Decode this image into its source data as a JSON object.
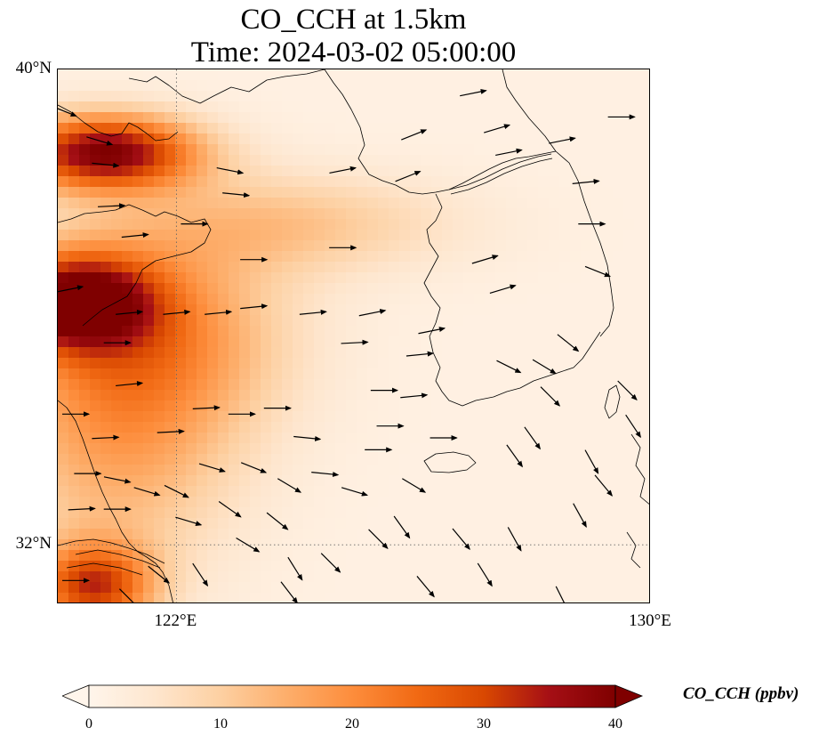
{
  "title_line1": "CO_CCH at 1.5km",
  "title_line2": "Time: 2024-03-02 05:00:00",
  "map": {
    "lon_range": [
      120.0,
      130.0
    ],
    "lat_range": [
      31.0,
      40.0
    ],
    "lat_ticks": [
      {
        "value": 40,
        "label": "40°N"
      },
      {
        "value": 32,
        "label": "32°N"
      }
    ],
    "lon_ticks": [
      {
        "value": 122,
        "label": "122°E"
      },
      {
        "value": 130,
        "label": "130°E"
      }
    ],
    "gridlines": {
      "lons": [
        122
      ],
      "lats": [
        32
      ],
      "style": "dotted"
    },
    "ocean_color": "#fff4e6",
    "coastline_color": "#000000",
    "wind_vectors": "black arrows"
  },
  "colorbar": {
    "label": "CO_CCH (ppbv)",
    "min": 0,
    "max": 40,
    "ticks": [
      "0",
      "10",
      "20",
      "30",
      "40"
    ],
    "colormap": [
      "#fff5eb",
      "#fee6ce",
      "#fdd0a2",
      "#fdae6b",
      "#fd8d3c",
      "#f16913",
      "#d94801",
      "#a50f15",
      "#7f0000"
    ],
    "extend": "both"
  },
  "chart_data": {
    "type": "heatmap",
    "title": "CO_CCH at 1.5km\nTime: 2024-03-02 05:00:00",
    "variable": "CO_CCH",
    "units": "ppbv",
    "value_range": [
      0,
      40
    ],
    "plumes": [
      {
        "lon": 120.8,
        "lat": 38.6,
        "peak": 38,
        "sigma_lon": 1.1,
        "sigma_lat": 0.45
      },
      {
        "lon": 120.3,
        "lat": 36.1,
        "peak": 36,
        "sigma_lon": 0.9,
        "sigma_lat": 0.55
      },
      {
        "lon": 121.5,
        "lat": 35.5,
        "peak": 18,
        "sigma_lon": 1.6,
        "sigma_lat": 1.2
      },
      {
        "lon": 123.8,
        "lat": 37.4,
        "peak": 10,
        "sigma_lon": 2.0,
        "sigma_lat": 0.6
      },
      {
        "lon": 120.6,
        "lat": 31.3,
        "peak": 28,
        "sigma_lon": 0.7,
        "sigma_lat": 0.5
      },
      {
        "lon": 121.0,
        "lat": 33.5,
        "peak": 12,
        "sigma_lon": 1.4,
        "sigma_lat": 1.5
      }
    ],
    "background_ppbv": 1.5,
    "wind_vectors": [
      {
        "lon": 120.1,
        "lat": 39.3,
        "u": 1.0,
        "v": -0.4
      },
      {
        "lon": 120.7,
        "lat": 38.8,
        "u": 1.0,
        "v": -0.3
      },
      {
        "lon": 120.8,
        "lat": 38.4,
        "u": 1.0,
        "v": -0.1
      },
      {
        "lon": 120.9,
        "lat": 37.7,
        "u": 1.0,
        "v": 0.05
      },
      {
        "lon": 121.3,
        "lat": 37.2,
        "u": 1.0,
        "v": 0.1
      },
      {
        "lon": 120.2,
        "lat": 36.3,
        "u": 1.0,
        "v": 0.2
      },
      {
        "lon": 121.0,
        "lat": 35.4,
        "u": 1.0,
        "v": 0.0
      },
      {
        "lon": 121.2,
        "lat": 34.7,
        "u": 1.0,
        "v": 0.1
      },
      {
        "lon": 120.3,
        "lat": 34.2,
        "u": 1.0,
        "v": 0.0
      },
      {
        "lon": 120.8,
        "lat": 33.8,
        "u": 1.0,
        "v": 0.05
      },
      {
        "lon": 121.9,
        "lat": 33.9,
        "u": 1.0,
        "v": 0.05
      },
      {
        "lon": 122.5,
        "lat": 34.3,
        "u": 1.0,
        "v": 0.05
      },
      {
        "lon": 123.1,
        "lat": 34.2,
        "u": 1.0,
        "v": 0.0
      },
      {
        "lon": 123.7,
        "lat": 34.3,
        "u": 1.0,
        "v": 0.0
      },
      {
        "lon": 121.2,
        "lat": 35.9,
        "u": 1.0,
        "v": 0.1
      },
      {
        "lon": 122.0,
        "lat": 35.9,
        "u": 1.0,
        "v": 0.1
      },
      {
        "lon": 122.7,
        "lat": 35.9,
        "u": 1.0,
        "v": 0.1
      },
      {
        "lon": 123.3,
        "lat": 36.0,
        "u": 1.0,
        "v": 0.1
      },
      {
        "lon": 124.3,
        "lat": 35.9,
        "u": 1.0,
        "v": 0.1
      },
      {
        "lon": 123.3,
        "lat": 36.8,
        "u": 1.0,
        "v": 0.0
      },
      {
        "lon": 124.8,
        "lat": 37.0,
        "u": 1.0,
        "v": 0.0
      },
      {
        "lon": 122.3,
        "lat": 37.4,
        "u": 1.0,
        "v": 0.0
      },
      {
        "lon": 123.0,
        "lat": 37.9,
        "u": 1.0,
        "v": -0.1
      },
      {
        "lon": 122.9,
        "lat": 38.3,
        "u": 1.0,
        "v": -0.2
      },
      {
        "lon": 124.8,
        "lat": 38.3,
        "u": 1.0,
        "v": 0.2
      },
      {
        "lon": 125.9,
        "lat": 38.2,
        "u": 1.0,
        "v": 0.4
      },
      {
        "lon": 127.6,
        "lat": 38.6,
        "u": 1.0,
        "v": 0.2
      },
      {
        "lon": 127.4,
        "lat": 39.0,
        "u": 1.0,
        "v": 0.3
      },
      {
        "lon": 128.5,
        "lat": 38.8,
        "u": 1.0,
        "v": 0.2
      },
      {
        "lon": 129.5,
        "lat": 39.2,
        "u": 1.0,
        "v": 0.0
      },
      {
        "lon": 127.0,
        "lat": 39.6,
        "u": 1.0,
        "v": 0.2
      },
      {
        "lon": 126.0,
        "lat": 38.9,
        "u": 1.0,
        "v": 0.4
      },
      {
        "lon": 128.9,
        "lat": 38.1,
        "u": 1.0,
        "v": 0.1
      },
      {
        "lon": 129.0,
        "lat": 37.4,
        "u": 1.0,
        "v": 0.0
      },
      {
        "lon": 129.1,
        "lat": 36.6,
        "u": 1.0,
        "v": -0.4
      },
      {
        "lon": 128.2,
        "lat": 35.0,
        "u": 1.0,
        "v": -0.6
      },
      {
        "lon": 127.6,
        "lat": 35.0,
        "u": 1.0,
        "v": -0.5
      },
      {
        "lon": 126.3,
        "lat": 35.6,
        "u": 1.0,
        "v": 0.2
      },
      {
        "lon": 126.0,
        "lat": 34.5,
        "u": 1.0,
        "v": 0.1
      },
      {
        "lon": 126.1,
        "lat": 35.2,
        "u": 1.0,
        "v": 0.1
      },
      {
        "lon": 126.5,
        "lat": 33.8,
        "u": 1.0,
        "v": 0.0
      },
      {
        "lon": 127.2,
        "lat": 36.8,
        "u": 1.0,
        "v": 0.3
      },
      {
        "lon": 125.4,
        "lat": 33.6,
        "u": 1.0,
        "v": 0.0
      },
      {
        "lon": 124.5,
        "lat": 33.2,
        "u": 1.0,
        "v": -0.1
      },
      {
        "lon": 125.0,
        "lat": 32.9,
        "u": 1.0,
        "v": -0.3
      },
      {
        "lon": 121.0,
        "lat": 32.6,
        "u": 1.0,
        "v": 0.0
      },
      {
        "lon": 122.2,
        "lat": 32.4,
        "u": 1.0,
        "v": -0.3
      },
      {
        "lon": 123.2,
        "lat": 32.0,
        "u": 1.0,
        "v": -0.6
      },
      {
        "lon": 123.7,
        "lat": 32.4,
        "u": 1.0,
        "v": -0.8
      },
      {
        "lon": 124.6,
        "lat": 31.7,
        "u": 1.0,
        "v": -1.0
      },
      {
        "lon": 125.4,
        "lat": 32.1,
        "u": 1.0,
        "v": -1.0
      },
      {
        "lon": 126.2,
        "lat": 31.3,
        "u": 1.0,
        "v": -1.2
      },
      {
        "lon": 127.2,
        "lat": 31.5,
        "u": 1.0,
        "v": -1.6
      },
      {
        "lon": 128.5,
        "lat": 31.1,
        "u": 1.0,
        "v": -2.0
      },
      {
        "lon": 128.8,
        "lat": 32.5,
        "u": 1.0,
        "v": -1.8
      },
      {
        "lon": 127.7,
        "lat": 32.1,
        "u": 1.0,
        "v": -1.8
      },
      {
        "lon": 129.2,
        "lat": 33.0,
        "u": 1.0,
        "v": -1.2
      },
      {
        "lon": 129.7,
        "lat": 34.0,
        "u": 1.0,
        "v": -1.5
      },
      {
        "lon": 129.0,
        "lat": 33.4,
        "u": 1.0,
        "v": -1.8
      },
      {
        "lon": 127.7,
        "lat": 33.5,
        "u": 1.0,
        "v": -1.4
      },
      {
        "lon": 128.3,
        "lat": 34.5,
        "u": 1.0,
        "v": -1.0
      },
      {
        "lon": 128.0,
        "lat": 33.8,
        "u": 1.0,
        "v": -1.4
      },
      {
        "lon": 125.8,
        "lat": 32.3,
        "u": 1.0,
        "v": -1.4
      },
      {
        "lon": 126.8,
        "lat": 32.1,
        "u": 1.0,
        "v": -1.2
      },
      {
        "lon": 123.9,
        "lat": 33.0,
        "u": 1.0,
        "v": -0.6
      },
      {
        "lon": 121.0,
        "lat": 33.1,
        "u": 1.0,
        "v": -0.2
      },
      {
        "lon": 120.4,
        "lat": 32.6,
        "u": 1.0,
        "v": 0.05
      },
      {
        "lon": 120.5,
        "lat": 33.2,
        "u": 1.0,
        "v": 0.0
      },
      {
        "lon": 120.3,
        "lat": 31.4,
        "u": 1.0,
        "v": 0.0
      },
      {
        "lon": 121.5,
        "lat": 32.9,
        "u": 1.0,
        "v": -0.3
      },
      {
        "lon": 122.0,
        "lat": 32.9,
        "u": 1.0,
        "v": -0.5
      },
      {
        "lon": 122.9,
        "lat": 32.6,
        "u": 1.0,
        "v": -0.7
      },
      {
        "lon": 123.3,
        "lat": 33.3,
        "u": 1.0,
        "v": -0.4
      },
      {
        "lon": 122.6,
        "lat": 33.3,
        "u": 1.0,
        "v": -0.3
      },
      {
        "lon": 124.2,
        "lat": 33.8,
        "u": 1.0,
        "v": -0.1
      },
      {
        "lon": 124.0,
        "lat": 31.6,
        "u": 1.0,
        "v": -1.6
      },
      {
        "lon": 122.4,
        "lat": 31.5,
        "u": 1.0,
        "v": -1.5
      },
      {
        "lon": 121.7,
        "lat": 31.5,
        "u": 1.0,
        "v": -0.8
      },
      {
        "lon": 121.2,
        "lat": 31.1,
        "u": 1.0,
        "v": -1.0
      },
      {
        "lon": 125.0,
        "lat": 35.4,
        "u": 1.0,
        "v": 0.05
      },
      {
        "lon": 125.3,
        "lat": 35.9,
        "u": 1.0,
        "v": 0.2
      },
      {
        "lon": 125.5,
        "lat": 34.6,
        "u": 1.0,
        "v": 0.0
      },
      {
        "lon": 125.6,
        "lat": 34.0,
        "u": 1.0,
        "v": 0.0
      },
      {
        "lon": 126.0,
        "lat": 33.0,
        "u": 1.0,
        "v": -0.6
      },
      {
        "lon": 127.5,
        "lat": 36.3,
        "u": 1.0,
        "v": 0.3
      },
      {
        "lon": 128.6,
        "lat": 35.4,
        "u": 1.0,
        "v": -0.8
      },
      {
        "lon": 129.6,
        "lat": 34.6,
        "u": 1.0,
        "v": -1.0
      },
      {
        "lon": 123.9,
        "lat": 31.2,
        "u": 1.0,
        "v": -1.3
      }
    ]
  }
}
